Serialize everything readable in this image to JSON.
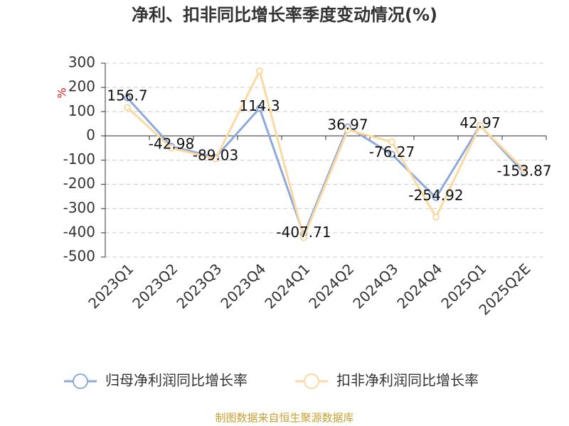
{
  "chart_data": {
    "type": "line",
    "title": "净利、扣非同比增长率季度变动情况(%)",
    "y_label": "%",
    "categories": [
      "2023Q1",
      "2023Q2",
      "2023Q3",
      "2023Q4",
      "2024Q1",
      "2024Q2",
      "2024Q3",
      "2024Q4",
      "2025Q1",
      "2025Q2E"
    ],
    "series": [
      {
        "name": "归母净利润同比增长率",
        "color": "#8eaadc",
        "values": [
          156.7,
          -42.98,
          -89.03,
          114.3,
          -407.71,
          36.97,
          -76.27,
          -254.92,
          42.97,
          -153.87
        ],
        "data_labels": true
      },
      {
        "name": "扣非净利润同比增长率",
        "color": "#fcd9a1",
        "values": [
          118,
          -50,
          -95,
          268,
          -420,
          25,
          -25,
          -335,
          42,
          -140
        ],
        "data_labels": false
      }
    ],
    "ylim": [
      -500,
      300
    ],
    "yticks": [
      300,
      200,
      100,
      0,
      -100,
      -200,
      -300,
      -400,
      -500
    ],
    "grid": true,
    "legend": "bottom",
    "source": "制图数据来自恒生聚源数据库"
  }
}
